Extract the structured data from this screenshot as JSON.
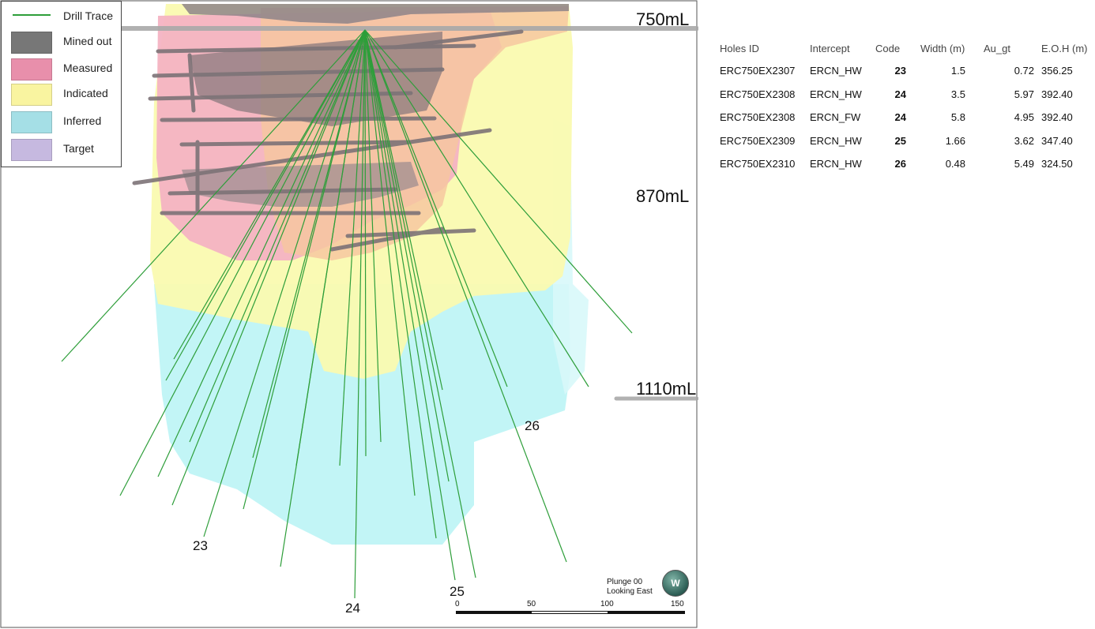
{
  "legend": {
    "items": [
      {
        "label": "Drill Trace",
        "color": "#2e9e3a",
        "kind": "line"
      },
      {
        "label": "Mined out",
        "color": "#777777",
        "kind": "box"
      },
      {
        "label": "Measured",
        "color": "#e88fab",
        "kind": "box"
      },
      {
        "label": "Indicated",
        "color": "#f9f4a0",
        "kind": "box"
      },
      {
        "label": "Inferred",
        "color": "#a5dfe6",
        "kind": "box"
      },
      {
        "label": "Target",
        "color": "#c6b9e0",
        "kind": "box"
      }
    ]
  },
  "levels": [
    "750mL",
    "870mL",
    "1110mL"
  ],
  "hole_labels": [
    "23",
    "24",
    "25",
    "26"
  ],
  "view": {
    "plunge": "Plunge 00",
    "looking": "Looking East",
    "compass": "W"
  },
  "scale": {
    "ticks": [
      "0",
      "50",
      "100",
      "150"
    ]
  },
  "table": {
    "headers": [
      "Holes ID",
      "Intercept",
      "Code",
      "Width (m)",
      "Au_gt",
      "E.O.H (m)"
    ],
    "rows": [
      [
        "ERC750EX2307",
        "ERCN_HW",
        "23",
        "1.5",
        "0.72",
        "356.25"
      ],
      [
        "ERC750EX2308",
        "ERCN_HW",
        "24",
        "3.5",
        "5.97",
        "392.40"
      ],
      [
        "ERC750EX2308",
        "ERCN_FW",
        "24",
        "5.8",
        "4.95",
        "392.40"
      ],
      [
        "ERC750EX2309",
        "ERCN_HW",
        "25",
        "1.66",
        "3.62",
        "347.40"
      ],
      [
        "ERC750EX2310",
        "ERCN_HW",
        "26",
        "0.48",
        "5.49",
        "324.50"
      ]
    ]
  }
}
